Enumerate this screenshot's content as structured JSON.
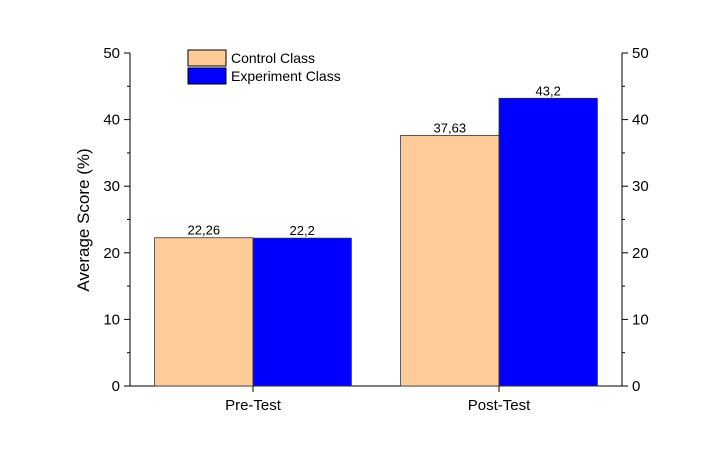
{
  "chart_data": {
    "type": "bar",
    "title": "",
    "xlabel": "",
    "ylabel": "Average Score (%)",
    "ylim": [
      0,
      50
    ],
    "yticks": [
      0,
      10,
      20,
      30,
      40,
      50
    ],
    "categories": [
      "Pre-Test",
      "Post-Test"
    ],
    "series": [
      {
        "name": "Control Class",
        "values": [
          22.26,
          37.63
        ],
        "labels": [
          "22,26",
          "37,63"
        ],
        "color": "#FFCC99"
      },
      {
        "name": "Experiment Class",
        "values": [
          22.2,
          43.2
        ],
        "labels": [
          "22,2",
          "43,2"
        ],
        "color": "#0000FF"
      }
    ],
    "legend": "top-left",
    "grid": false,
    "secondary_y_axis": true
  }
}
